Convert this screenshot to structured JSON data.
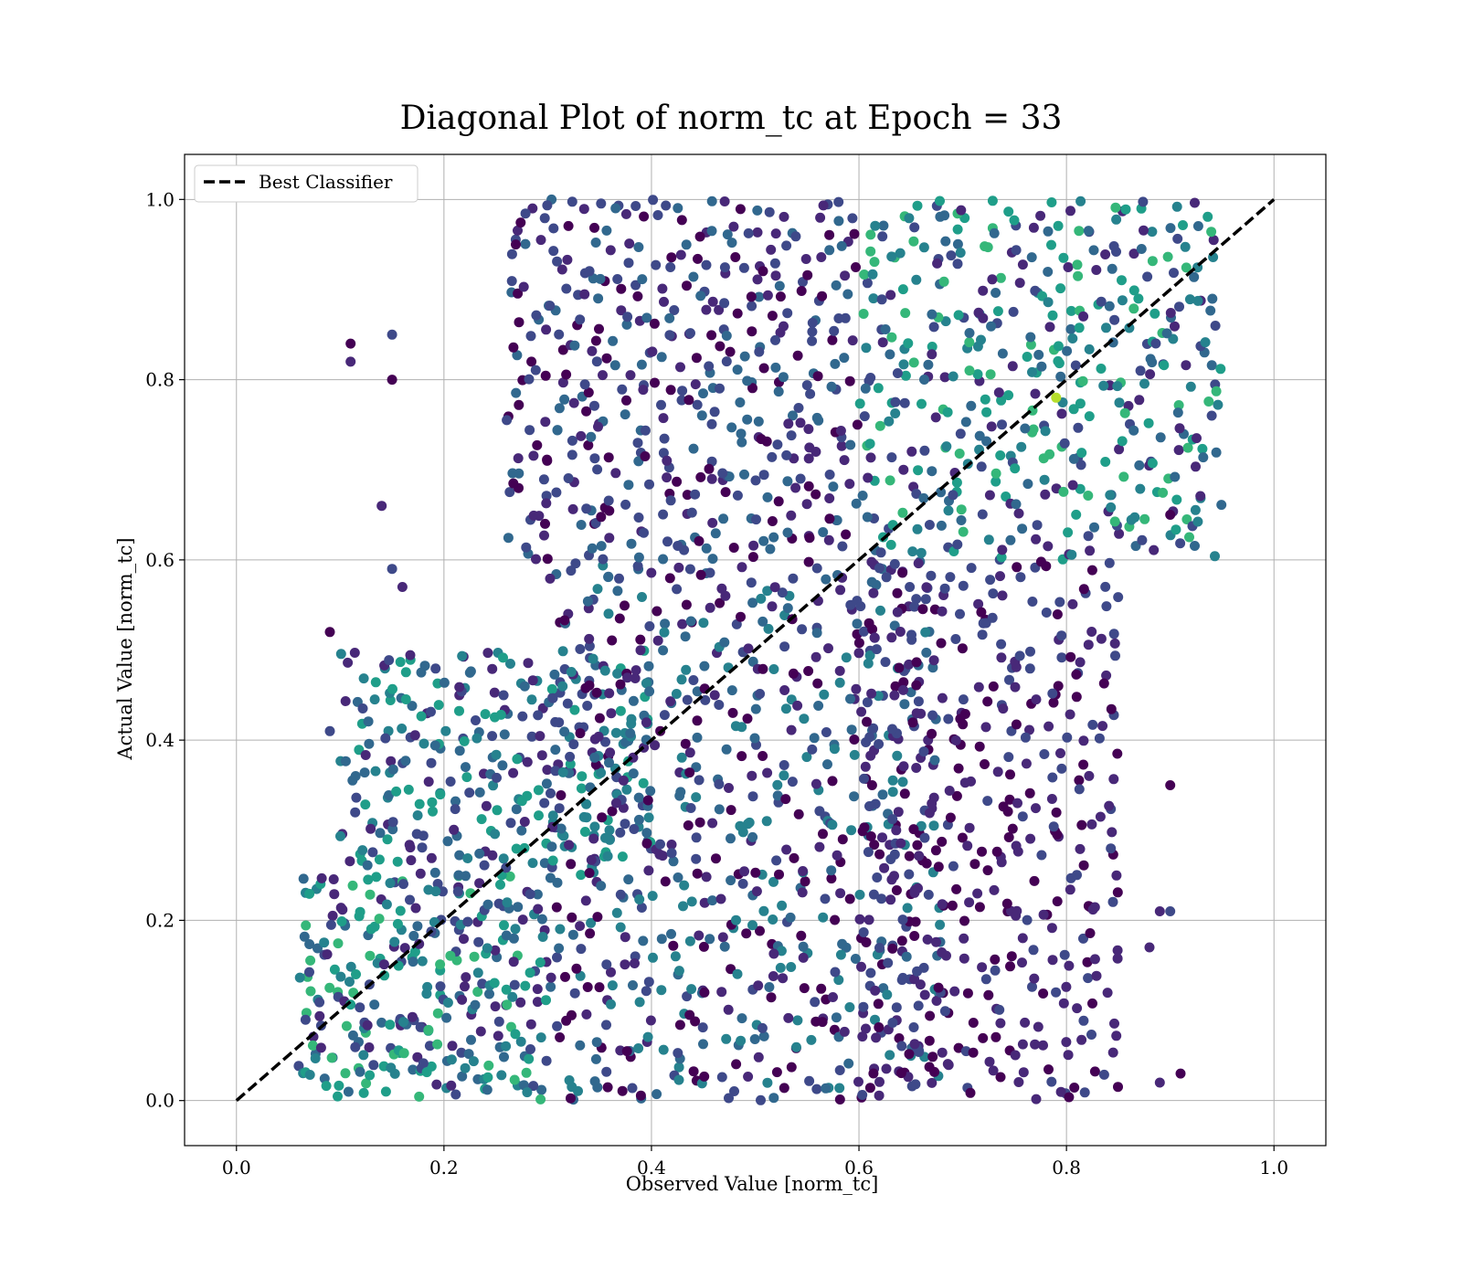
{
  "chart_data": {
    "type": "scatter",
    "title": "Diagonal Plot of norm_tc at Epoch = 33",
    "xlabel": "Observed Value [norm_tc]",
    "ylabel": "Actual Value [norm_tc]",
    "xlim": [
      -0.05,
      1.05
    ],
    "ylim": [
      -0.05,
      1.05
    ],
    "xticks": [
      "0.0",
      "0.2",
      "0.4",
      "0.6",
      "0.8",
      "1.0"
    ],
    "yticks": [
      "0.0",
      "0.2",
      "0.4",
      "0.6",
      "0.8",
      "1.0"
    ],
    "grid": true,
    "legend_position": "upper-left",
    "colormap": "viridis",
    "colors": {
      "viridis": [
        "#440154",
        "#482878",
        "#3e4989",
        "#31688e",
        "#26828e",
        "#1f9e89",
        "#35b779",
        "#6ece58",
        "#b5de2b",
        "#fde725"
      ],
      "reference_line": "#000000",
      "grid": "#b0b0b0"
    },
    "series": [
      {
        "name": "Best Classifier",
        "kind": "line",
        "style": "dashed",
        "x": [
          0.0,
          1.0
        ],
        "y": [
          0.0,
          1.0
        ]
      },
      {
        "kind": "scatter",
        "point_cloud": [
          {
            "x_range": [
              0.06,
              0.3
            ],
            "y_range": [
              0.0,
              0.25
            ],
            "x_count": 12,
            "y_count": 6,
            "shade": [
              1,
              6
            ]
          },
          {
            "x_range": [
              0.1,
              0.4
            ],
            "y_range": [
              0.25,
              0.5
            ],
            "x_count": 12,
            "y_count": 6,
            "shade": [
              1,
              5
            ]
          },
          {
            "x_range": [
              0.3,
              0.68
            ],
            "y_range": [
              0.0,
              0.6
            ],
            "x_count": 14,
            "y_count": 12,
            "shade": [
              0,
              4
            ]
          },
          {
            "x_range": [
              0.26,
              0.6
            ],
            "y_range": [
              0.6,
              1.0
            ],
            "x_count": 12,
            "y_count": 9,
            "shade": [
              0,
              3
            ]
          },
          {
            "x_range": [
              0.6,
              0.95
            ],
            "y_range": [
              0.6,
              1.0
            ],
            "x_count": 12,
            "y_count": 9,
            "shade": [
              1,
              6
            ]
          },
          {
            "x_range": [
              0.6,
              0.85
            ],
            "y_range": [
              0.0,
              0.6
            ],
            "x_count": 10,
            "y_count": 10,
            "shade": [
              0,
              2
            ]
          }
        ],
        "outliers": [
          {
            "x": 0.11,
            "y": 0.84
          },
          {
            "x": 0.11,
            "y": 0.82
          },
          {
            "x": 0.15,
            "y": 0.85
          },
          {
            "x": 0.15,
            "y": 0.8
          },
          {
            "x": 0.14,
            "y": 0.66
          },
          {
            "x": 0.15,
            "y": 0.59
          },
          {
            "x": 0.09,
            "y": 0.52
          },
          {
            "x": 0.16,
            "y": 0.57
          },
          {
            "x": 0.09,
            "y": 0.41
          },
          {
            "x": 0.9,
            "y": 0.35
          },
          {
            "x": 0.89,
            "y": 0.21
          },
          {
            "x": 0.9,
            "y": 0.21
          },
          {
            "x": 0.91,
            "y": 0.03
          },
          {
            "x": 0.89,
            "y": 0.02
          },
          {
            "x": 0.94,
            "y": 0.76
          },
          {
            "x": 0.9,
            "y": 0.65
          },
          {
            "x": 0.88,
            "y": 0.17
          },
          {
            "x": 0.79,
            "y": 0.78
          }
        ]
      }
    ]
  }
}
